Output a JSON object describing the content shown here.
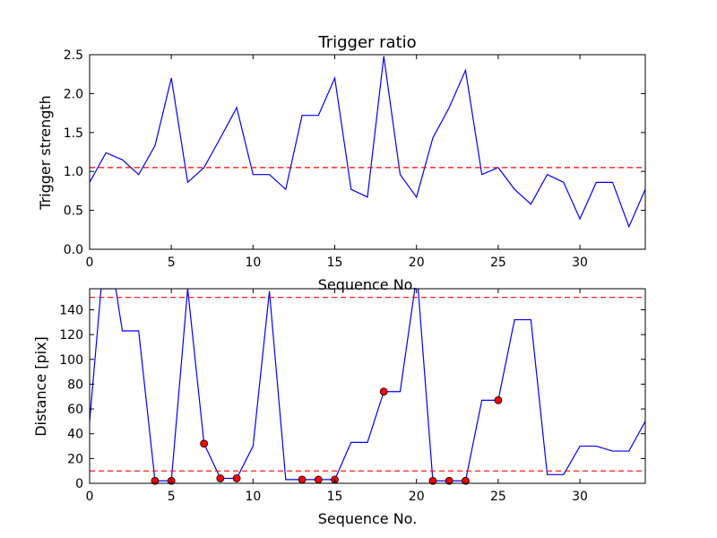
{
  "chart_data": [
    {
      "type": "line",
      "title": "Trigger ratio",
      "xlabel": "Sequence No.",
      "ylabel": "Trigger strength",
      "xlim": [
        0,
        34
      ],
      "ylim": [
        0,
        2.5
      ],
      "xticks": [
        "0",
        "5",
        "10",
        "15",
        "20",
        "25",
        "30"
      ],
      "yticks": [
        "0.0",
        "0.5",
        "1.0",
        "1.5",
        "2.0",
        "2.5"
      ],
      "grid": false,
      "series": [
        {
          "color": "#0000ff",
          "x": [
            0,
            1,
            2,
            3,
            4,
            5,
            6,
            7,
            8,
            9,
            10,
            11,
            12,
            13,
            14,
            15,
            16,
            17,
            18,
            19,
            20,
            21,
            22,
            23,
            24,
            25,
            26,
            27,
            28,
            29,
            30,
            31,
            32,
            33,
            34
          ],
          "y": [
            0.86,
            1.24,
            1.15,
            0.96,
            1.33,
            2.2,
            0.86,
            1.05,
            1.43,
            1.82,
            0.96,
            0.96,
            0.77,
            1.72,
            1.72,
            2.2,
            0.77,
            0.67,
            2.48,
            0.96,
            0.67,
            1.43,
            1.82,
            2.3,
            0.96,
            1.05,
            0.77,
            0.58,
            0.96,
            0.86,
            0.39,
            0.86,
            0.86,
            0.29,
            0.77
          ]
        }
      ],
      "hlines": [
        {
          "y": 1.05,
          "color": "#ff0000",
          "style": "dashed"
        }
      ]
    },
    {
      "type": "line",
      "title": "",
      "xlabel": "Sequence No.",
      "ylabel": "Distance [pix]",
      "xlim": [
        0,
        34
      ],
      "ylim": [
        0,
        157
      ],
      "xticks": [
        "0",
        "5",
        "10",
        "15",
        "20",
        "25",
        "30"
      ],
      "yticks": [
        "0",
        "20",
        "40",
        "60",
        "80",
        "100",
        "120",
        "140"
      ],
      "grid": false,
      "series": [
        {
          "color": "#0000ff",
          "x": [
            0,
            0.7,
            1,
            1.6,
            2,
            3,
            4,
            5,
            6,
            7,
            8,
            9,
            10,
            11,
            12,
            13,
            14,
            15,
            16,
            17,
            18,
            19,
            19.9,
            20.1,
            21,
            22,
            23,
            24,
            25,
            26,
            27,
            28,
            29,
            30,
            31,
            32,
            33,
            34
          ],
          "y": [
            50,
            157,
            157,
            157,
            123,
            123,
            2,
            2,
            157,
            32,
            4,
            4,
            30,
            155,
            3,
            3,
            3,
            3,
            33,
            33,
            74,
            74,
            157,
            157,
            2,
            2,
            2,
            67,
            67,
            132,
            132,
            7,
            7,
            30,
            30,
            26,
            26,
            50
          ]
        }
      ],
      "markers": {
        "color": "#ff0000",
        "x": [
          4,
          5,
          7,
          8,
          9,
          13,
          14,
          15,
          18,
          21,
          22,
          23,
          25
        ],
        "y": [
          2,
          2,
          32,
          4,
          4,
          3,
          3,
          3,
          74,
          2,
          2,
          2,
          67
        ]
      },
      "hlines": [
        {
          "y": 150,
          "color": "#ff0000",
          "style": "dashed"
        },
        {
          "y": 10,
          "color": "#ff0000",
          "style": "dashed"
        }
      ]
    }
  ]
}
